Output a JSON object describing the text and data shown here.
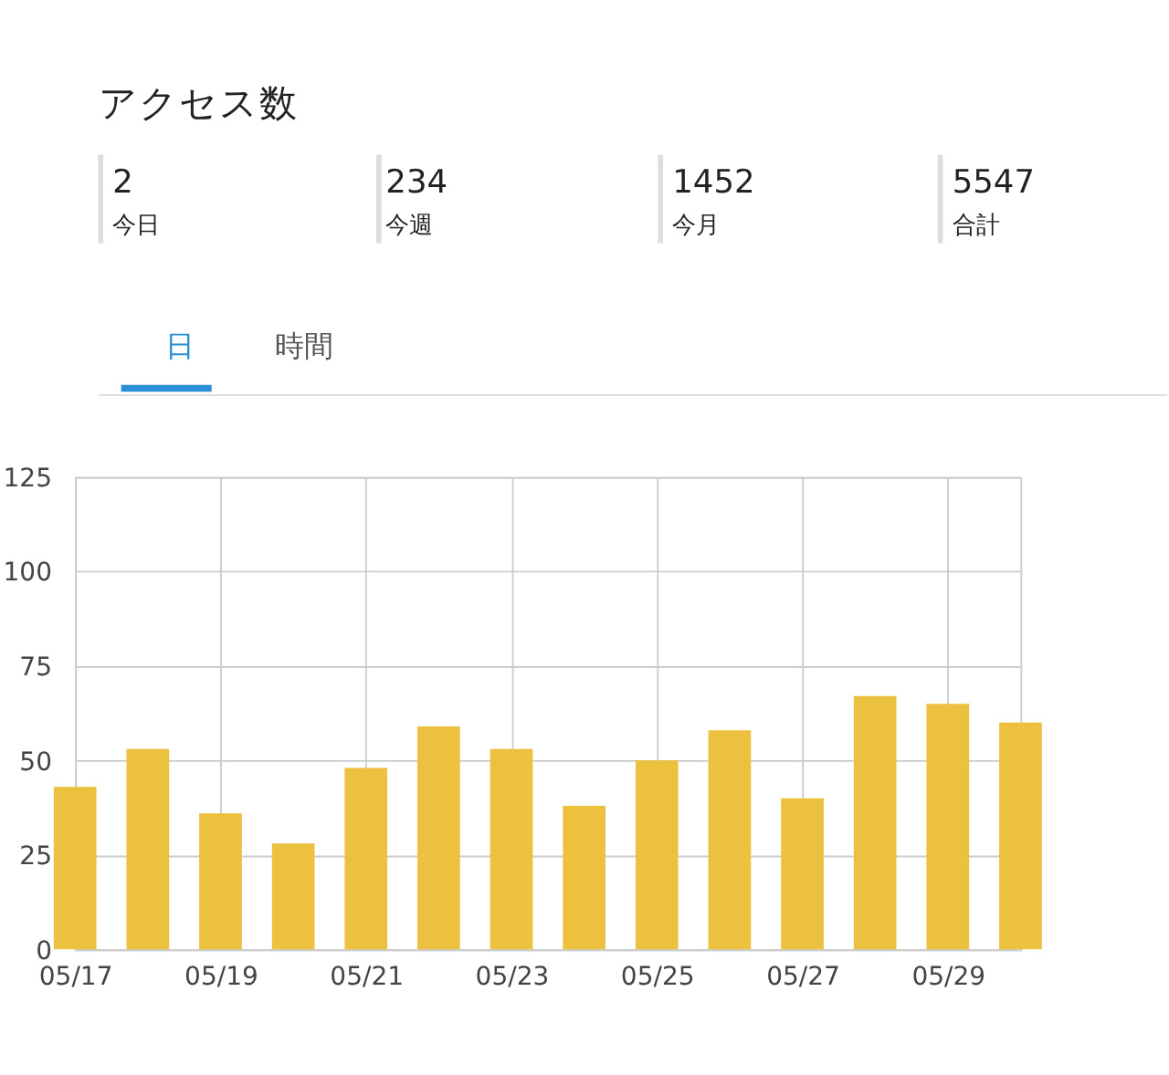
{
  "chart_data": {
    "type": "bar",
    "title": "アクセス数",
    "annotations": [
      "2",
      "今日",
      "234",
      "今週",
      "1452",
      "今月",
      "5547",
      "合計",
      "日",
      "時間"
    ],
    "categories": [
      "05/17",
      null,
      "05/19",
      null,
      "05/21",
      null,
      "05/23",
      null,
      "05/25",
      null,
      "05/27",
      null,
      "05/29",
      null
    ],
    "values": [
      43,
      53,
      36,
      28,
      48,
      59,
      53,
      38,
      50,
      58,
      40,
      67,
      65,
      60
    ],
    "color": "#ecc13f",
    "ylim": [
      0,
      125
    ],
    "yticks": [
      0,
      25,
      50,
      75,
      100,
      125
    ],
    "grid": true
  }
}
